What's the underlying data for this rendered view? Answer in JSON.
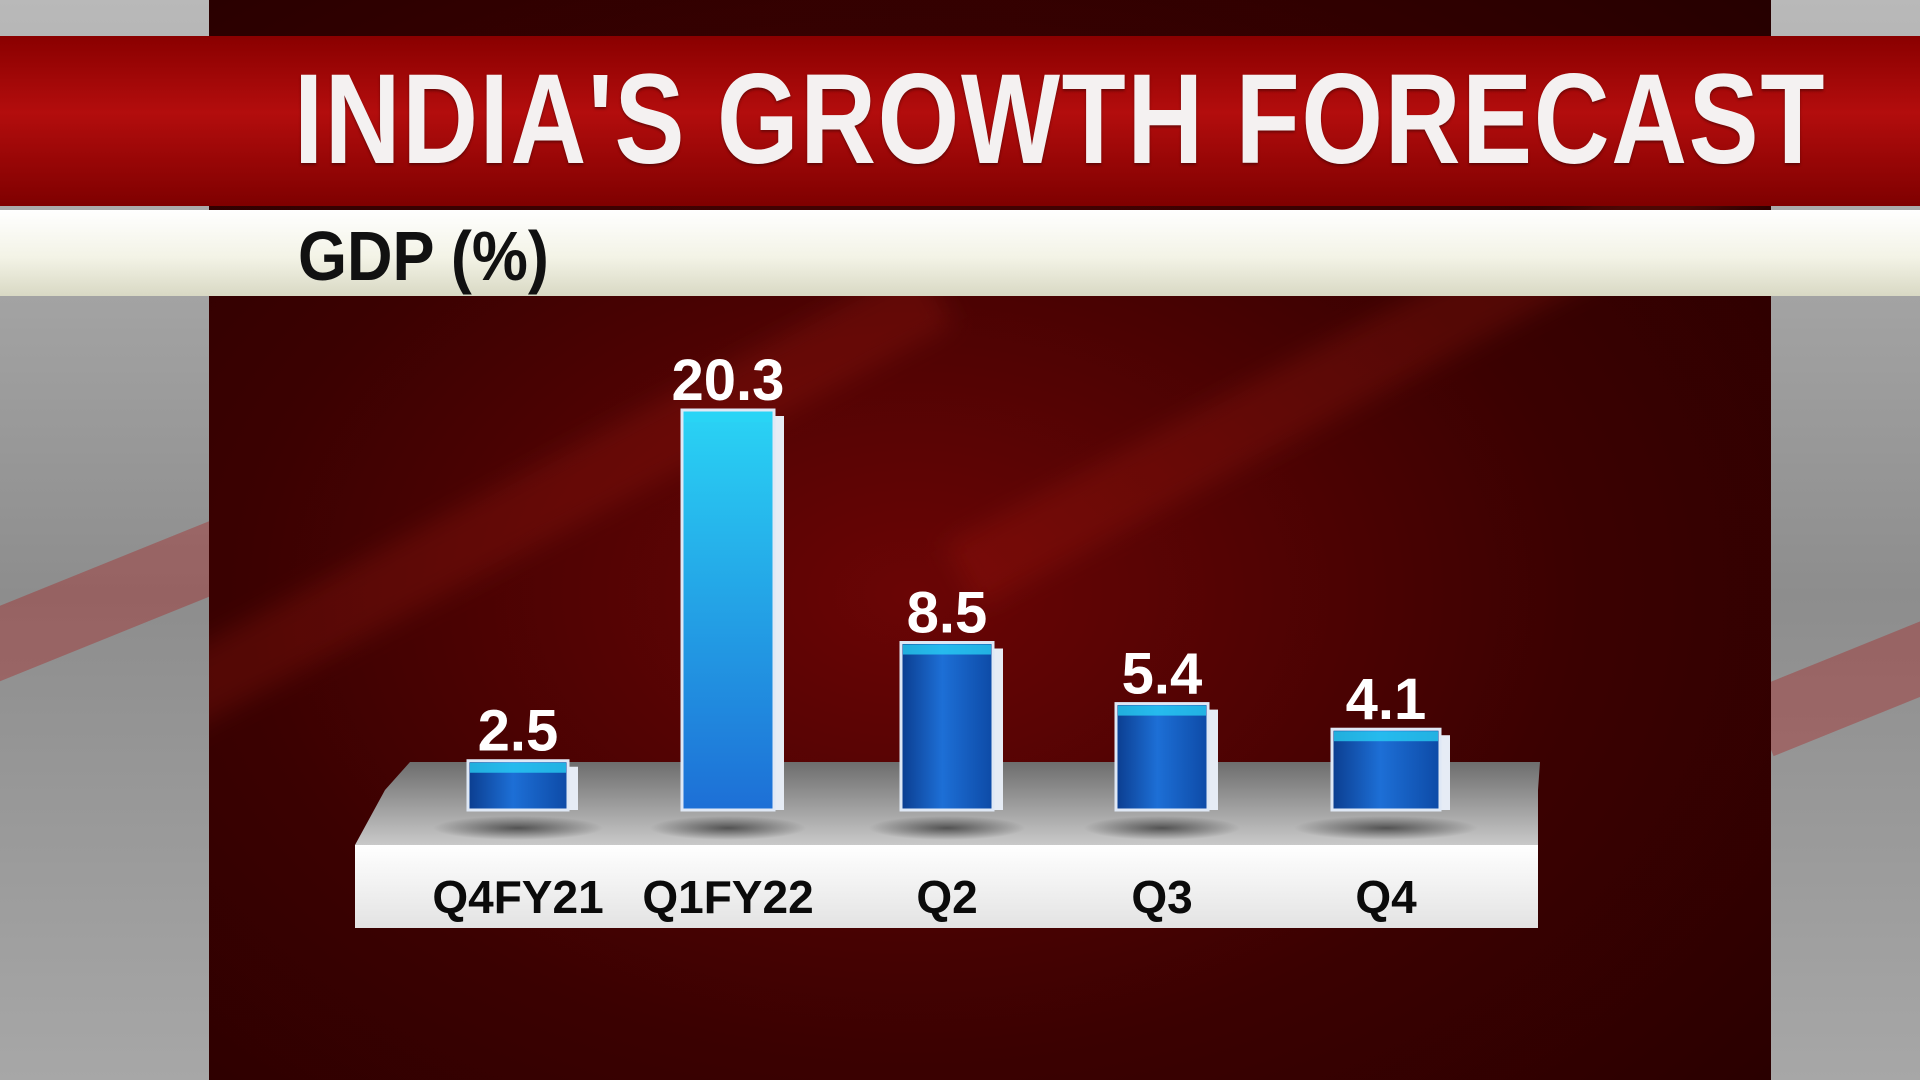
{
  "title": "INDIA'S GROWTH FORECAST",
  "subtitle": "GDP (%)",
  "chart_data": {
    "type": "bar",
    "title": "INDIA'S GROWTH FORECAST",
    "ylabel": "GDP (%)",
    "xlabel": "",
    "categories": [
      "Q4FY21",
      "Q1FY22",
      "Q2",
      "Q3",
      "Q4"
    ],
    "values": [
      2.5,
      20.3,
      8.5,
      5.4,
      4.1
    ],
    "data_labels": [
      "2.5",
      "20.3",
      "8.5",
      "5.4",
      "4.1"
    ],
    "ylim": [
      0,
      20.3
    ],
    "grid": false,
    "legend": "none",
    "colors": {
      "bar": "#1565c8",
      "bar_highlight": "#2ad4f5",
      "background": "#3b0101",
      "title_bar": "#b30d0d",
      "subtitle_bar": "#f3f3e6",
      "platform": "#f2f2f2"
    }
  }
}
